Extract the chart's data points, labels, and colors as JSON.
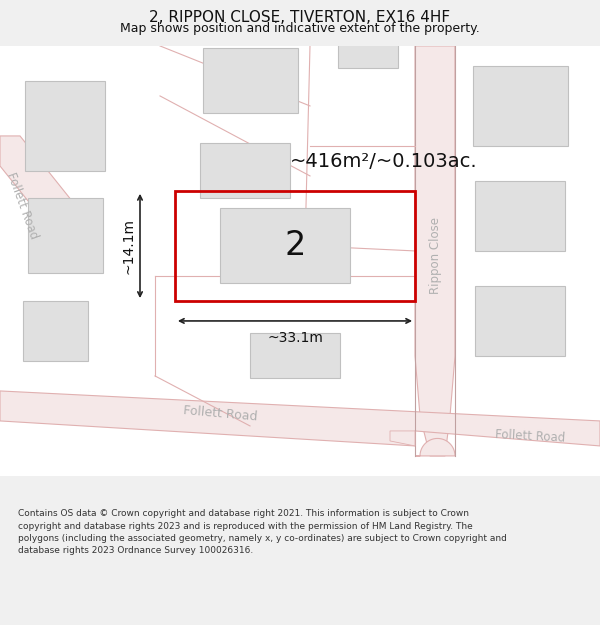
{
  "title": "2, RIPPON CLOSE, TIVERTON, EX16 4HF",
  "subtitle": "Map shows position and indicative extent of the property.",
  "footer": "Contains OS data © Crown copyright and database right 2021. This information is subject to Crown copyright and database rights 2023 and is reproduced with the permission of HM Land Registry. The polygons (including the associated geometry, namely x, y co-ordinates) are subject to Crown copyright and database rights 2023 Ordnance Survey 100026316.",
  "area_label": "~416m²/~0.103ac.",
  "width_label": "~33.1m",
  "height_label": "~14.1m",
  "plot_number": "2",
  "bg_color": "#f0f0f0",
  "map_bg": "#ffffff",
  "road_fill": "#f5e8e8",
  "road_edge": "#e0b0b0",
  "building_fill": "#e0e0e0",
  "building_edge": "#c0c0c0",
  "plot_edge": "#cc0000",
  "plot_lw": 2.0,
  "arrow_color": "#222222",
  "text_color": "#111111",
  "road_label_color": "#b0b0b0",
  "title_fontsize": 11,
  "subtitle_fontsize": 9,
  "footer_fontsize": 6.5,
  "area_label_fontsize": 14,
  "dim_label_fontsize": 10,
  "plot_num_fontsize": 24
}
